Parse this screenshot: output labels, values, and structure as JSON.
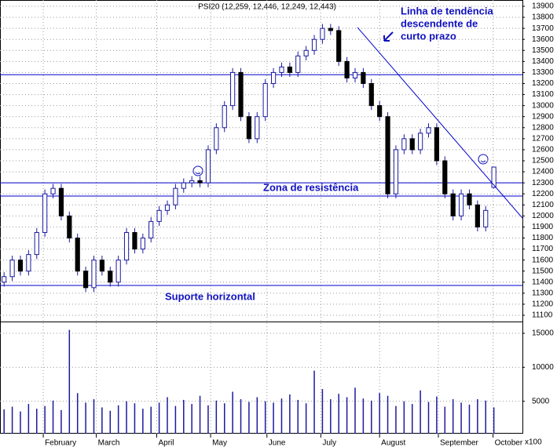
{
  "chart_data": {
    "type": "candlestick",
    "title": "PSI20 (12,259, 12,446, 12,249, 12,443)",
    "annotations": [
      "Linha de tendência",
      "descendente de",
      "curto prazo",
      "Zona de resistência",
      "Suporte horizontal"
    ],
    "volume_unit": "x100",
    "open": [
      11400,
      11450,
      11600,
      11500,
      11650,
      11850,
      12200,
      12250,
      12000,
      11800,
      11500,
      11350,
      11600,
      11500,
      11400,
      11600,
      11850,
      11700,
      11800,
      11950,
      12050,
      12100,
      12250,
      12300,
      12320,
      12300,
      12600,
      12800,
      13000,
      13300,
      12900,
      12700,
      12900,
      13200,
      13300,
      13350,
      13300,
      13450,
      13500,
      13600,
      13700,
      13680,
      13400,
      13250,
      13300,
      13200,
      13000,
      12900,
      12200,
      12600,
      12700,
      12600,
      12750,
      12800,
      12500,
      12200,
      12000,
      12200,
      12100,
      11900,
      12259
    ],
    "high": [
      11490,
      11640,
      11640,
      11690,
      11890,
      12240,
      12290,
      12290,
      12040,
      11840,
      11540,
      11640,
      11640,
      11540,
      11640,
      11890,
      11890,
      11840,
      11990,
      12090,
      12140,
      12290,
      12340,
      12360,
      12360,
      12640,
      12840,
      13040,
      13340,
      13340,
      12940,
      12940,
      13240,
      13340,
      13390,
      13390,
      13490,
      13540,
      13640,
      13740,
      13740,
      13720,
      13440,
      13340,
      13340,
      13240,
      13040,
      12940,
      12640,
      12740,
      12740,
      12790,
      12840,
      12840,
      12540,
      12240,
      12240,
      12240,
      12140,
      12090,
      12446
    ],
    "low": [
      11360,
      11410,
      11460,
      11460,
      11610,
      11810,
      12160,
      11960,
      11760,
      11460,
      11310,
      11310,
      11460,
      11360,
      11360,
      11560,
      11660,
      11660,
      11760,
      11910,
      12010,
      12060,
      12210,
      12260,
      12260,
      12260,
      12560,
      12760,
      12960,
      12860,
      12660,
      12660,
      12860,
      13160,
      13260,
      13260,
      13260,
      13410,
      13460,
      13560,
      13640,
      13360,
      13210,
      13210,
      13160,
      12960,
      12860,
      12160,
      12160,
      12560,
      12560,
      12560,
      12710,
      12460,
      12160,
      11960,
      11960,
      12060,
      11860,
      11860,
      12249
    ],
    "close": [
      11450,
      11600,
      11500,
      11650,
      11850,
      12200,
      12250,
      12000,
      11800,
      11500,
      11350,
      11600,
      11500,
      11400,
      11600,
      11850,
      11700,
      11800,
      11950,
      12050,
      12100,
      12250,
      12300,
      12320,
      12300,
      12600,
      12800,
      13000,
      13300,
      12900,
      12700,
      12900,
      13200,
      13300,
      13350,
      13300,
      13450,
      13500,
      13600,
      13700,
      13680,
      13400,
      13250,
      13300,
      13200,
      13000,
      12900,
      12200,
      12600,
      12700,
      12600,
      12750,
      12800,
      12500,
      12200,
      12000,
      12200,
      12100,
      11900,
      12050,
      12443
    ],
    "volume": [
      3800,
      4200,
      3500,
      4600,
      3900,
      4300,
      5100,
      3700,
      15500,
      6200,
      4800,
      5300,
      4100,
      3600,
      4400,
      5000,
      4700,
      3900,
      4200,
      4800,
      5600,
      4300,
      5200,
      4600,
      5800,
      4400,
      5100,
      4700,
      6400,
      5300,
      4900,
      5600,
      5000,
      4800,
      5400,
      6000,
      5200,
      4700,
      9500,
      6800,
      5300,
      6100,
      5600,
      7000,
      5400,
      5100,
      6200,
      5800,
      4300,
      5000,
      4600,
      6600,
      4900,
      5700,
      4200,
      5300,
      4800,
      4500,
      5300,
      5100,
      4100
    ],
    "xlim": [
      -0.5,
      63.5
    ],
    "xticks": [
      {
        "value": 4.8,
        "label": "February"
      },
      {
        "value": 11.3,
        "label": "March"
      },
      {
        "value": 18.7,
        "label": "April"
      },
      {
        "value": 25.3,
        "label": "May"
      },
      {
        "value": 32.2,
        "label": "June"
      },
      {
        "value": 38.8,
        "label": "July"
      },
      {
        "value": 46,
        "label": "August"
      },
      {
        "value": 53.2,
        "label": "September"
      },
      {
        "value": 59.9,
        "label": "October"
      }
    ],
    "ylim": [
      11100,
      13900
    ],
    "yticks": [
      11100,
      11200,
      11300,
      11400,
      11500,
      11600,
      11700,
      11800,
      11900,
      12000,
      12100,
      12200,
      12300,
      12400,
      12500,
      12600,
      12700,
      12800,
      12900,
      13000,
      13100,
      13200,
      13300,
      13400,
      13500,
      13600,
      13700,
      13800,
      13900
    ],
    "volume_lim": [
      0,
      16500
    ],
    "volume_ticks": [
      5000,
      10000,
      15000
    ],
    "hlines": [
      13280,
      12300,
      12180,
      11370
    ],
    "trendline": {
      "x": [
        43.3,
        63.5
      ],
      "y": [
        13708,
        11981
      ]
    },
    "up_color": "#ffffff",
    "down_color": "#000000",
    "edge_color": "#1a1aa0",
    "line_color": "#0000cc",
    "grid": true
  }
}
